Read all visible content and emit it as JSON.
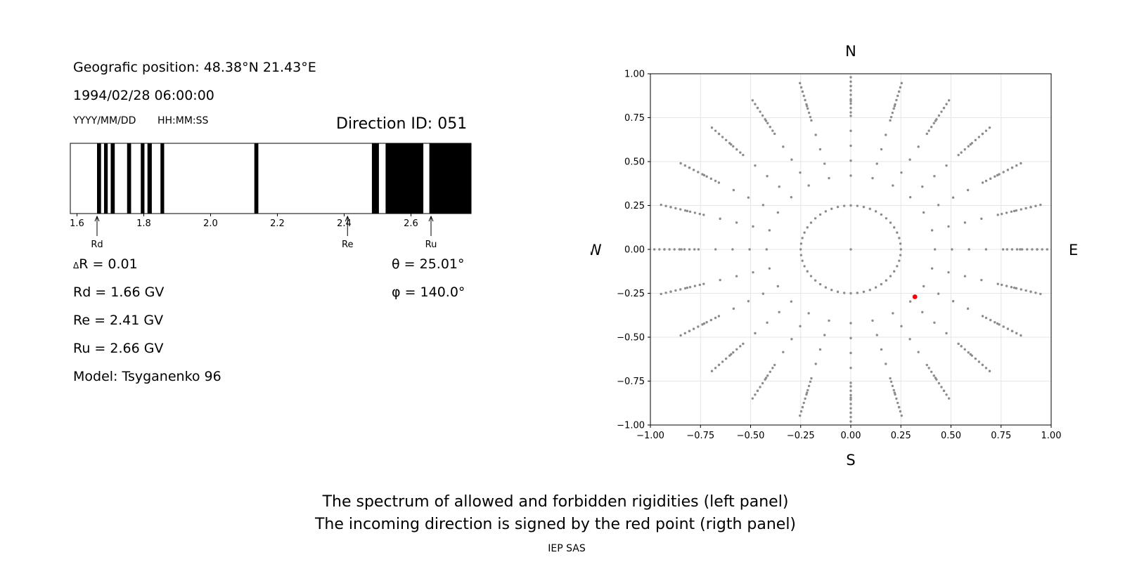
{
  "left": {
    "position_text": "Geografic position: 48.38°N 21.43°E",
    "datetime_text": "1994/02/28 06:00:00",
    "date_format_label": "YYYY/MM/DD",
    "time_format_label": "HH:MM:SS",
    "direction_id_text": "Direction ID: 051",
    "delta_r_prefix": "Δ",
    "delta_r_text": "R = 0.01",
    "theta_text": "θ = 25.01°",
    "phi_text": "φ = 140.0°",
    "rd_text": "Rd = 1.66 GV",
    "re_text": "Re = 2.41 GV",
    "ru_text": "Ru = 2.66 GV",
    "model_text": "Model: Tsyganenko 96"
  },
  "footer": {
    "line1": "The spectrum of allowed and forbidden rigidities (left panel)",
    "line2": "The incoming direction is signed by the red point (rigth panel)",
    "credit": "IEP SAS"
  },
  "colors": {
    "grid_point": "#8c8c8c",
    "red_point": "#ff0000",
    "forbidden": "#000000"
  },
  "chart_data": [
    {
      "type": "bar",
      "xlim": [
        1.58,
        2.78
      ],
      "xticks": [
        1.6,
        1.8,
        2.0,
        2.2,
        2.4,
        2.6
      ],
      "tick_labels": [
        "1.6",
        "1.8",
        "2.0",
        "2.2",
        "2.4",
        "2.6"
      ],
      "forbidden_bands": [
        [
          1.66,
          1.672
        ],
        [
          1.681,
          1.692
        ],
        [
          1.701,
          1.713
        ],
        [
          1.75,
          1.762
        ],
        [
          1.791,
          1.802
        ],
        [
          1.811,
          1.824
        ],
        [
          1.85,
          1.861
        ],
        [
          2.131,
          2.143
        ],
        [
          2.483,
          2.504
        ],
        [
          2.524,
          2.637
        ],
        [
          2.655,
          2.78
        ]
      ],
      "markers": [
        {
          "label": "Rd",
          "value": 1.66
        },
        {
          "label": "Re",
          "value": 2.41
        },
        {
          "label": "Ru",
          "value": 2.66
        }
      ]
    },
    {
      "type": "scatter",
      "xlim": [
        -1.0,
        1.0
      ],
      "ylim": [
        -1.0,
        1.0
      ],
      "xticks": [
        -1.0,
        -0.75,
        -0.5,
        -0.25,
        0.0,
        0.25,
        0.5,
        0.75,
        1.0
      ],
      "yticks": [
        -1.0,
        -0.75,
        -0.5,
        -0.25,
        0.0,
        0.25,
        0.5,
        0.75,
        1.0
      ],
      "tick_labels": [
        "−1.00",
        "−0.75",
        "−0.50",
        "−0.25",
        "0.00",
        "0.25",
        "0.50",
        "0.75",
        "1.00"
      ],
      "grid": true,
      "compass": {
        "top": "N",
        "bottom": "S",
        "left": "W",
        "right": "E"
      },
      "grid_points": {
        "radii": [
          0.25,
          0.42,
          0.59,
          0.75,
          0.87,
          0.95,
          1.0
        ],
        "azimuth_step_deg": 15,
        "center": [
          0.0,
          0.0
        ],
        "radial_steps_per_ring": 1
      },
      "highlight_point": {
        "x": 0.32,
        "y": -0.27,
        "theta_deg": 25.01,
        "phi_deg": 140.0
      }
    }
  ]
}
